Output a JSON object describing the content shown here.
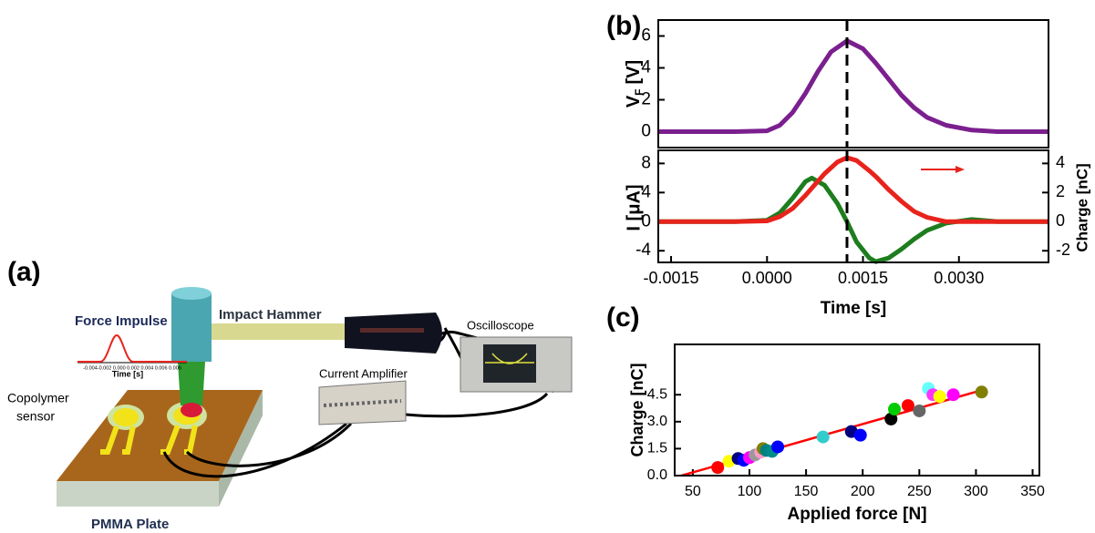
{
  "diagram": {
    "panel": "(a)",
    "force_impulse": "Force Impulse",
    "inset_ticks": "-0.004-0.002 0.000 0.002 0.004 0.006 0.008",
    "inset_xlabel": "Time [s]",
    "impact_hammer": "Impact Hammer",
    "oscilloscope": "Oscilloscope",
    "current_amplifier": "Current Amplifier",
    "copolymer_sensor": [
      "Copolymer",
      "sensor"
    ],
    "pmma_plate": "PMMA Plate"
  },
  "chart_data": [
    {
      "type": "line",
      "panel": "(b)",
      "x": [
        -0.0017,
        -0.001,
        -0.0005,
        0.0,
        0.0002,
        0.0004,
        0.0006,
        0.0008,
        0.001,
        0.00125,
        0.0015,
        0.0017,
        0.0019,
        0.0021,
        0.0023,
        0.0025,
        0.0028,
        0.0032,
        0.0036,
        0.0044
      ],
      "series": [
        {
          "color": "#7b1f8f",
          "values": [
            0,
            0,
            0,
            0.05,
            0.4,
            1.2,
            2.4,
            3.8,
            5.0,
            5.7,
            5.2,
            4.3,
            3.3,
            2.3,
            1.5,
            0.9,
            0.4,
            0.1,
            0,
            0
          ]
        }
      ],
      "xlim": [
        -0.0017,
        0.0044
      ],
      "ylim": [
        -1.0,
        7.0
      ],
      "yticks": [
        0,
        2,
        4,
        6
      ],
      "ylabel": "V",
      "ylabel_sub": "F",
      "ylabel_unit": "[V]",
      "marker_x": 0.00125
    },
    {
      "type": "line",
      "x": [
        -0.0017,
        -0.001,
        -0.0005,
        0.0,
        0.0002,
        0.0004,
        0.0006,
        0.0007,
        0.0009,
        0.0011,
        0.00125,
        0.0014,
        0.0016,
        0.0017,
        0.0019,
        0.0021,
        0.0023,
        0.0025,
        0.0028,
        0.0032,
        0.0036,
        0.0044
      ],
      "series": [
        {
          "color": "#1e7d1e",
          "values": [
            0,
            0,
            0,
            0.2,
            1.2,
            3.2,
            5.5,
            6.0,
            5.0,
            2.5,
            0,
            -2.8,
            -5.0,
            -5.5,
            -5.0,
            -3.8,
            -2.4,
            -1.2,
            -0.2,
            0.3,
            0,
            0
          ]
        },
        {
          "color": "#e8231c",
          "axis": "y2",
          "values": [
            0,
            0,
            0,
            0.05,
            0.35,
            0.9,
            1.8,
            2.3,
            3.3,
            4.1,
            4.4,
            4.2,
            3.5,
            3.1,
            2.2,
            1.4,
            0.7,
            0.3,
            0,
            0,
            0,
            0
          ]
        }
      ],
      "xlim": [
        -0.0017,
        0.0044
      ],
      "ylim": [
        -5.6,
        9.8
      ],
      "yticks": [
        -4,
        0,
        4,
        8
      ],
      "y2lim": [
        -2.8,
        4.9
      ],
      "y2ticks": [
        -2,
        0,
        2,
        4
      ],
      "xticks": [
        {
          "value": -0.0015,
          "label": "-0.0015"
        },
        {
          "value": 0.0,
          "label": "0.0000"
        },
        {
          "value": 0.0015,
          "label": "0.0015"
        },
        {
          "value": 0.003,
          "label": "0.0030"
        }
      ],
      "xlabel": "Time [s]",
      "ylabel": "I [μA]",
      "y2label": "Charge [nC]",
      "marker_x": 0.00125
    },
    {
      "type": "scatter",
      "panel": "(c)",
      "x": [
        72,
        82,
        90,
        95,
        100,
        105,
        110,
        112,
        115,
        120,
        125,
        165,
        190,
        198,
        225,
        228,
        240,
        250,
        258,
        262,
        268,
        280,
        305
      ],
      "values": [
        0.45,
        0.8,
        0.95,
        0.85,
        1.0,
        1.15,
        1.3,
        1.5,
        1.4,
        1.35,
        1.6,
        2.15,
        2.45,
        2.25,
        3.15,
        3.7,
        3.9,
        3.6,
        4.85,
        4.5,
        4.4,
        4.5,
        4.65
      ],
      "colors": [
        "#ff0000",
        "#ffff00",
        "#000080",
        "#0000ff",
        "#ff00ff",
        "#999999",
        "#ff99cc",
        "#808000",
        "#008080",
        "#008b8b",
        "#0000ff",
        "#33cccc",
        "#000080",
        "#0000ff",
        "#000000",
        "#00cc00",
        "#ff0000",
        "#666666",
        "#66ffff",
        "#ff33ff",
        "#ffff00",
        "#ff00ff",
        "#808000"
      ],
      "fit": {
        "color": "#ff0000",
        "x": [
          40,
          305
        ],
        "values": [
          0,
          4.75
        ]
      },
      "xlim": [
        34,
        356
      ],
      "ylim": [
        0,
        7.3
      ],
      "xticks": [
        50,
        100,
        150,
        200,
        250,
        300,
        350
      ],
      "yticks": [
        {
          "value": 0,
          "label": "0.0"
        },
        {
          "value": 1.5,
          "label": "1.5"
        },
        {
          "value": 3.0,
          "label": "3.0"
        },
        {
          "value": 4.5,
          "label": "4.5"
        }
      ],
      "xlabel": "Applied force [N]",
      "ylabel": "Charge [nC]"
    }
  ]
}
